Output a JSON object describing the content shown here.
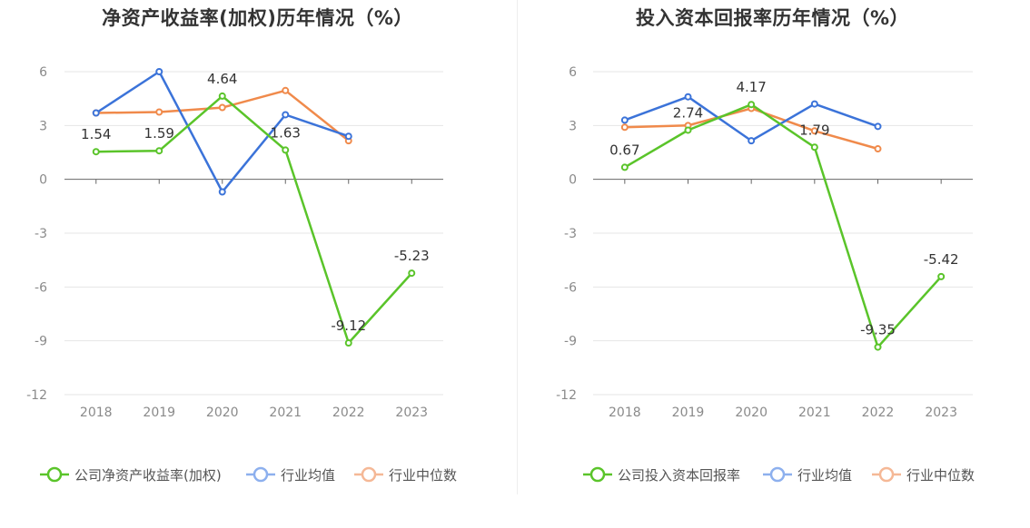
{
  "chart_data": [
    {
      "type": "line",
      "title": "净资产收益率(加权)历年情况（%）",
      "categories": [
        "2018",
        "2019",
        "2020",
        "2021",
        "2022",
        "2023"
      ],
      "ylim": [
        -12,
        6
      ],
      "yticks": [
        6,
        3,
        0,
        -3,
        -6,
        -9,
        -12
      ],
      "grid": true,
      "legend": "bottom",
      "series": [
        {
          "name": "公司净资产收益率(加权)",
          "color": "#5ac42a",
          "values": [
            1.54,
            1.59,
            4.64,
            1.63,
            -9.12,
            -5.23
          ],
          "labels": [
            "1.54",
            "1.59",
            "4.64",
            "1.63",
            "-9.12",
            "-5.23"
          ]
        },
        {
          "name": "行业均值",
          "color": "#3b73d9",
          "values": [
            3.7,
            6.0,
            -0.7,
            3.6,
            2.4,
            null
          ]
        },
        {
          "name": "行业中位数",
          "color": "#f08a4b",
          "values": [
            3.7,
            3.75,
            4.0,
            4.95,
            2.15,
            null
          ]
        }
      ]
    },
    {
      "type": "line",
      "title": "投入资本回报率历年情况（%）",
      "categories": [
        "2018",
        "2019",
        "2020",
        "2021",
        "2022",
        "2023"
      ],
      "ylim": [
        -12,
        6
      ],
      "yticks": [
        6,
        3,
        0,
        -3,
        -6,
        -9,
        -12
      ],
      "grid": true,
      "legend": "bottom",
      "series": [
        {
          "name": "公司投入资本回报率",
          "color": "#5ac42a",
          "values": [
            0.67,
            2.74,
            4.17,
            1.79,
            -9.35,
            -5.42
          ],
          "labels": [
            "0.67",
            "2.74",
            "4.17",
            "1.79",
            "-9.35",
            "-5.42"
          ]
        },
        {
          "name": "行业均值",
          "color": "#3b73d9",
          "values": [
            3.3,
            4.6,
            2.15,
            4.2,
            2.95,
            null
          ]
        },
        {
          "name": "行业中位数",
          "color": "#f08a4b",
          "values": [
            2.9,
            3.0,
            3.95,
            2.7,
            1.7,
            null
          ]
        }
      ]
    }
  ]
}
